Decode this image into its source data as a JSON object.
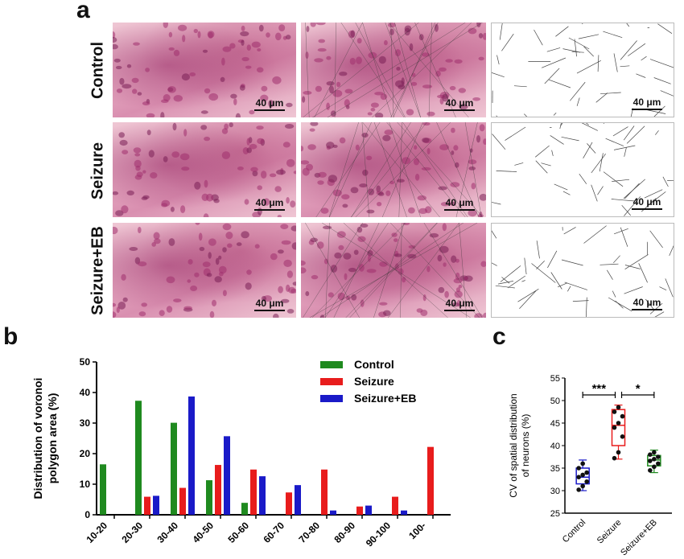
{
  "panels": {
    "a": "a",
    "b": "b",
    "c": "c"
  },
  "row_labels": [
    "Control",
    "Seizure",
    "Seizure+EB"
  ],
  "scale_bar": "40 μm",
  "colors": {
    "control": "#1f8a1f",
    "seizure": "#e81c1c",
    "seizure_eb": "#1a1ac8"
  },
  "chart_data": [
    {
      "type": "bar",
      "ylabel": "Distribution of voronoi polygon area (%)",
      "ylim": [
        0,
        50
      ],
      "yticks": [
        0,
        10,
        20,
        30,
        40,
        50
      ],
      "categories": [
        "10-20",
        "20-30",
        "30-40",
        "40-50",
        "50-60",
        "60-70",
        "70-80",
        "80-90",
        "90-100",
        "100-"
      ],
      "legend_position": "top-right",
      "series": [
        {
          "name": "Control",
          "values": [
            16.5,
            37.3,
            30.1,
            11.3,
            3.9,
            0,
            0,
            0,
            0,
            0
          ]
        },
        {
          "name": "Seizure",
          "values": [
            0,
            5.9,
            8.8,
            16.3,
            14.8,
            7.3,
            14.8,
            2.7,
            5.9,
            22.2
          ]
        },
        {
          "name": "Seizure+EB",
          "values": [
            0,
            6.2,
            38.7,
            25.7,
            12.6,
            9.7,
            1.4,
            3.0,
            1.4,
            0
          ]
        }
      ]
    },
    {
      "type": "box",
      "ylabel": "CV of spatial distribution of neurons (%)",
      "ylim": [
        25,
        55
      ],
      "yticks": [
        25,
        30,
        35,
        40,
        45,
        50,
        55
      ],
      "categories": [
        "Control",
        "Seizure",
        "Seizure+EB"
      ],
      "groups": [
        {
          "name": "Control",
          "q1": 31.5,
          "median": 33.0,
          "q3": 35.0,
          "min": 30.0,
          "max": 36.8,
          "points": [
            30.2,
            31.0,
            32.0,
            33.0,
            33.5,
            34.0,
            35.0,
            36.0
          ]
        },
        {
          "name": "Seizure",
          "q1": 40.0,
          "median": 44.5,
          "q3": 48.0,
          "min": 37.0,
          "max": 49.0,
          "points": [
            37.2,
            38.5,
            42.0,
            44.0,
            45.0,
            46.5,
            47.5,
            48.5
          ]
        },
        {
          "name": "Seizure+EB",
          "q1": 35.5,
          "median": 36.8,
          "q3": 37.8,
          "min": 34.0,
          "max": 39.0,
          "points": [
            34.5,
            35.3,
            36.0,
            36.6,
            37.0,
            37.5,
            38.0,
            38.5
          ]
        }
      ],
      "significance": [
        {
          "from": "Control",
          "to": "Seizure",
          "label": "***"
        },
        {
          "from": "Seizure",
          "to": "Seizure+EB",
          "label": "*"
        }
      ]
    }
  ]
}
